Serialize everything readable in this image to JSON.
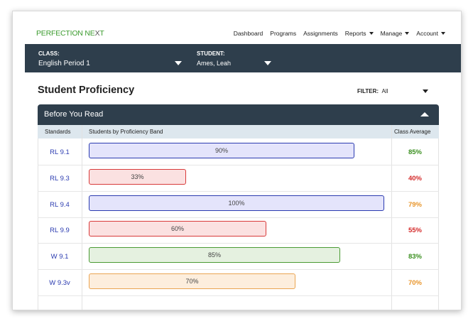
{
  "brand": {
    "logo_part1": "PERFECTION NE",
    "logo_x": "X",
    "logo_part2": "T"
  },
  "nav": {
    "dashboard": "Dashboard",
    "programs": "Programs",
    "assignments": "Assignments",
    "reports": "Reports",
    "manage": "Manage",
    "account": "Account"
  },
  "classbar": {
    "class_label": "CLASS:",
    "class_value": "English Period 1",
    "student_label": "STUDENT:",
    "student_value": "Ames, Leah"
  },
  "page": {
    "title": "Student Proficiency",
    "filter_label": "FILTER:",
    "filter_value": "All"
  },
  "panel": {
    "title": "Before You Read",
    "col_standards": "Standards",
    "col_band": "Students by Proficiency Band",
    "col_avg": "Class Average"
  },
  "rows": [
    {
      "standard": "RL 9.1",
      "percent": 90,
      "label": "90%",
      "avg": "85%",
      "avg_color": "#3a8f1f",
      "bar_fill": "#e4e4fb",
      "bar_border": "#2b3bb0"
    },
    {
      "standard": "RL 9.3",
      "percent": 33,
      "label": "33%",
      "avg": "40%",
      "avg_color": "#d42a2a",
      "bar_fill": "#fbe1e1",
      "bar_border": "#d83a3a"
    },
    {
      "standard": "RL 9.4",
      "percent": 100,
      "label": "100%",
      "avg": "79%",
      "avg_color": "#e8952a",
      "bar_fill": "#e4e4fb",
      "bar_border": "#2b3bb0"
    },
    {
      "standard": "RL 9.9",
      "percent": 60,
      "label": "60%",
      "avg": "55%",
      "avg_color": "#d42a2a",
      "bar_fill": "#fbe1e1",
      "bar_border": "#d83a3a"
    },
    {
      "standard": "W 9.1",
      "percent": 85,
      "label": "85%",
      "avg": "83%",
      "avg_color": "#3a8f1f",
      "bar_fill": "#e5f1e0",
      "bar_border": "#4a9a33"
    },
    {
      "standard": "W 9.3v",
      "percent": 70,
      "label": "70%",
      "avg": "70%",
      "avg_color": "#e8952a",
      "bar_fill": "#fdeedd",
      "bar_border": "#eba552"
    }
  ]
}
